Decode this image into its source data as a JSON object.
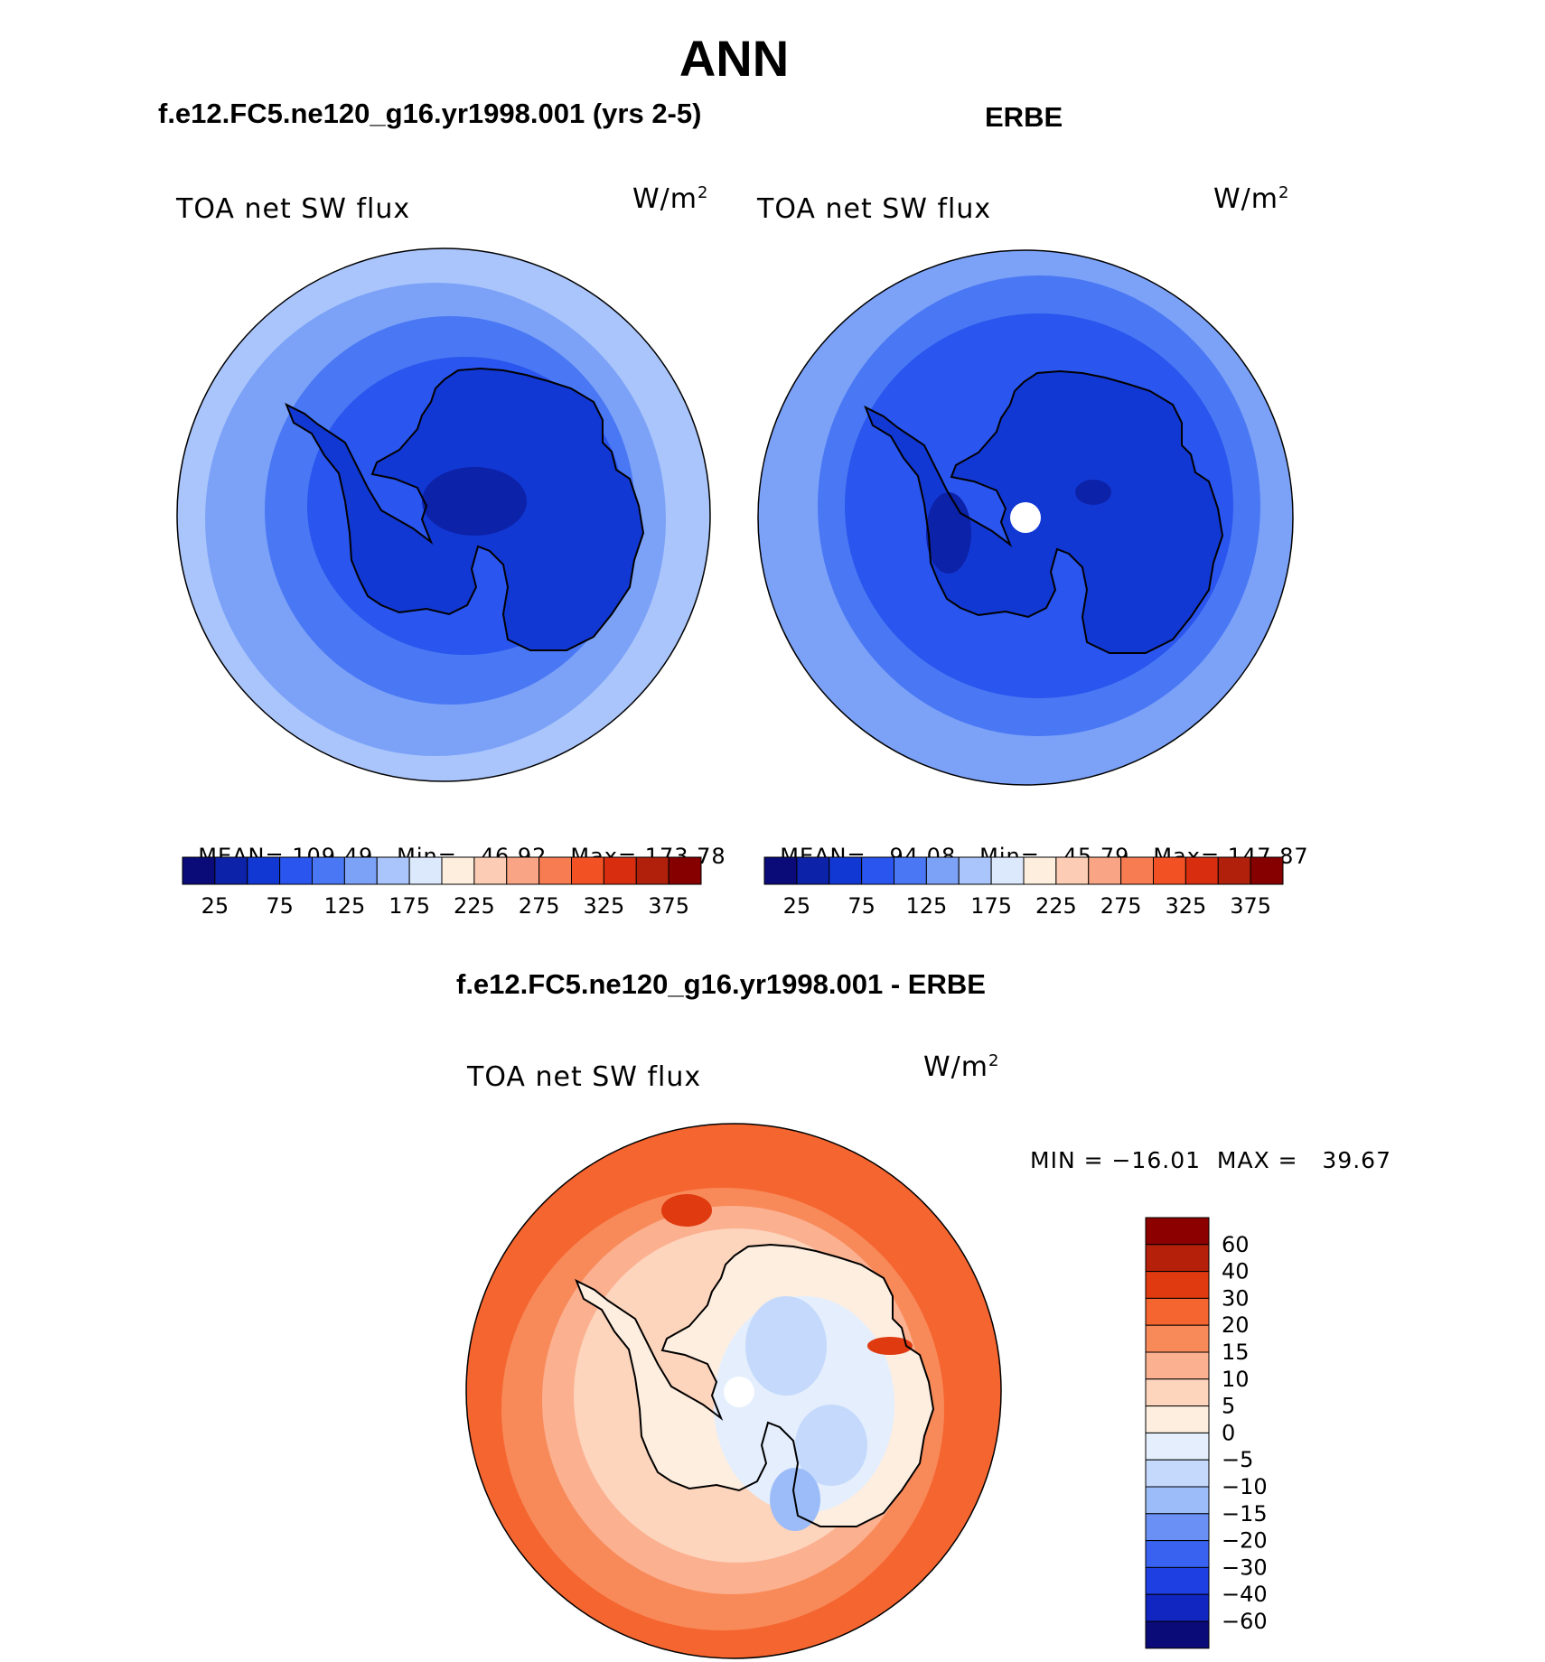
{
  "figure": {
    "season": "ANN",
    "diff_title": "f.e12.FC5.ne120_g16.yr1998.001 - ERBE"
  },
  "panels": [
    {
      "title": "f.e12.FC5.ne120_g16.yr1998.001 (yrs 2-5)",
      "variable": "TOA net SW flux",
      "units": "W/m",
      "units_exp": "2",
      "stats": {
        "mean_label": "MEAN=",
        "mean": "109.49",
        "min_label": "Min=",
        "min": "46.92",
        "max_label": "Max=",
        "max": "173.78"
      }
    },
    {
      "title": "ERBE",
      "variable": "TOA net SW flux",
      "units": "W/m",
      "units_exp": "2",
      "stats": {
        "mean_label": "MEAN=",
        "mean": "94.08",
        "min_label": "Min=",
        "min": "45.79",
        "max_label": "Max=",
        "max": "147.87"
      }
    },
    {
      "variable": "TOA net SW flux",
      "units": "W/m",
      "units_exp": "2",
      "minmax": "MIN = −16.01  MAX =   39.67"
    }
  ],
  "abs_colorbar": {
    "colors": [
      "#0a0a78",
      "#0c22a8",
      "#1238d4",
      "#2a55ee",
      "#4a78f4",
      "#7ca2f8",
      "#aac5fb",
      "#dce9fd",
      "#fdeede",
      "#fcccb4",
      "#f9a484",
      "#f87c52",
      "#f25124",
      "#d92d10",
      "#b0200a",
      "#860000"
    ],
    "tick_labels": [
      "25",
      "75",
      "125",
      "175",
      "225",
      "275",
      "325",
      "375"
    ]
  },
  "diff_colorbar": {
    "colors": [
      "#0a0a78",
      "#1126c0",
      "#1e40e2",
      "#3a62f0",
      "#6a90f5",
      "#9cbcf9",
      "#c4d9fb",
      "#e4eefd",
      "#fdeee0",
      "#fdd4bc",
      "#fbb090",
      "#f88a5a",
      "#f56530",
      "#df3a10",
      "#b5200a",
      "#8c0000"
    ],
    "tick_labels": [
      "60",
      "40",
      "30",
      "20",
      "15",
      "10",
      "5",
      "0",
      "−5",
      "−10",
      "−15",
      "−20",
      "−30",
      "−40",
      "−60"
    ]
  },
  "chart_data": [
    {
      "type": "heatmap",
      "title": "f.e12.FC5.ne120_g16.yr1998.001 (yrs 2-5)",
      "variable": "TOA net SW flux",
      "units": "W/m2",
      "projection": "south polar stereographic",
      "contour_levels": [
        25,
        50,
        75,
        100,
        125,
        150,
        175,
        200,
        225,
        250,
        275,
        300,
        325,
        350,
        375
      ],
      "mean": 109.49,
      "min": 46.92,
      "max": 173.78
    },
    {
      "type": "heatmap",
      "title": "ERBE",
      "variable": "TOA net SW flux",
      "units": "W/m2",
      "projection": "south polar stereographic",
      "contour_levels": [
        25,
        50,
        75,
        100,
        125,
        150,
        175,
        200,
        225,
        250,
        275,
        300,
        325,
        350,
        375
      ],
      "mean": 94.08,
      "min": 45.79,
      "max": 147.87
    },
    {
      "type": "heatmap",
      "title": "f.e12.FC5.ne120_g16.yr1998.001 - ERBE",
      "variable": "TOA net SW flux",
      "units": "W/m2",
      "projection": "south polar stereographic",
      "contour_levels": [
        -60,
        -40,
        -30,
        -20,
        -15,
        -10,
        -5,
        0,
        5,
        10,
        15,
        20,
        30,
        40,
        60
      ],
      "min": -16.01,
      "max": 39.67
    }
  ]
}
